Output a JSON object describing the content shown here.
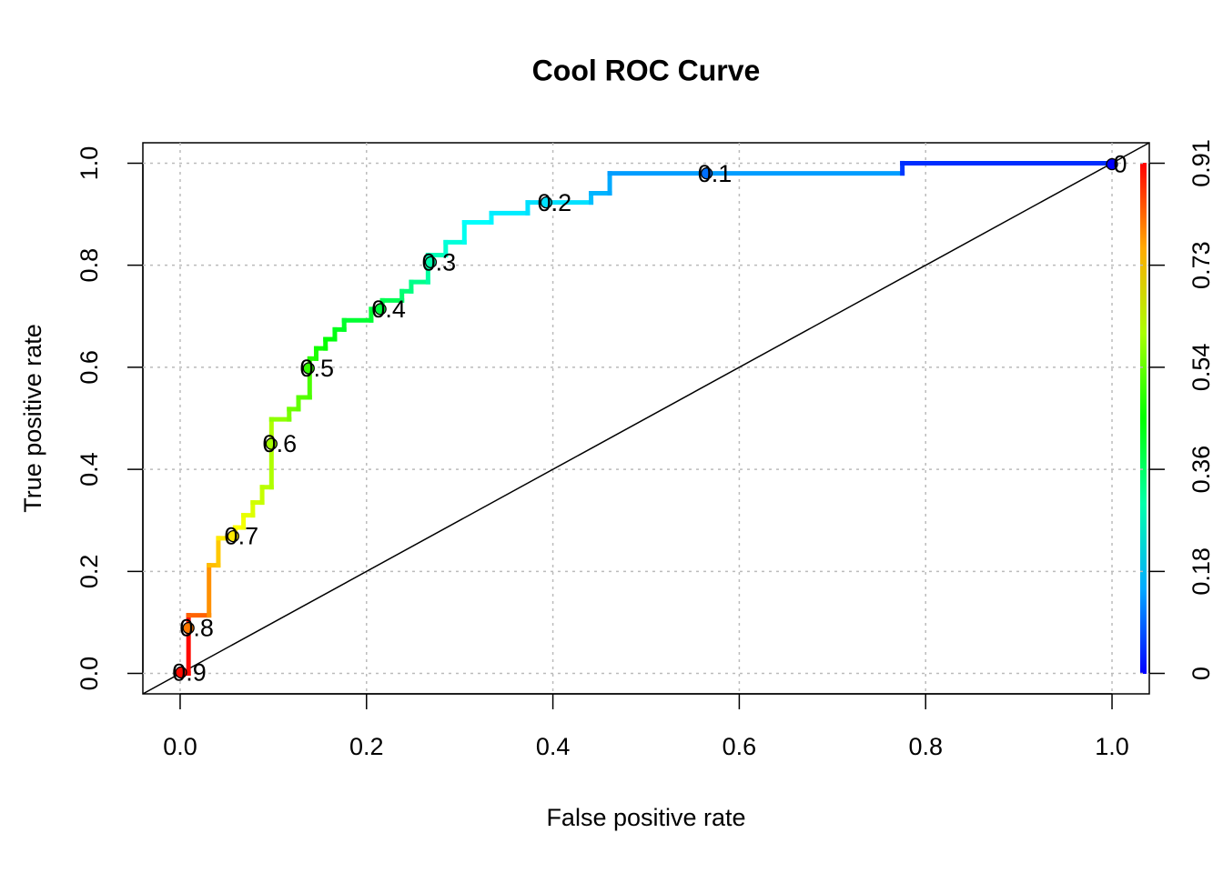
{
  "chart_data": {
    "type": "roc",
    "title": "Cool ROC Curve",
    "x_label": "False positive rate",
    "y_label": "True positive rate",
    "xlim": [
      -0.04,
      1.04
    ],
    "ylim": [
      -0.04,
      1.04
    ],
    "xticks": [
      {
        "value": 0,
        "label": "0.0"
      },
      0.2,
      0.4,
      0.6,
      0.8,
      {
        "value": 1,
        "label": "1.0"
      }
    ],
    "yticks": [
      {
        "value": 0,
        "label": "0.0"
      },
      0.2,
      0.4,
      0.6,
      0.8,
      {
        "value": 1,
        "label": "1.0"
      }
    ],
    "y2lim": [
      -0.03632,
      0.94432
    ],
    "y2ticks": [
      0,
      {
        "value": 0.1816,
        "label": "0.18"
      },
      {
        "value": 0.3632,
        "label": "0.36"
      },
      {
        "value": 0.5448,
        "label": "0.54"
      },
      {
        "value": 0.7264,
        "label": "0.73"
      },
      {
        "value": 0.908,
        "label": "0.91"
      }
    ],
    "grid": true,
    "curve": {
      "x": [
        0,
        0.009,
        0.009,
        0.031,
        0.031,
        0.041,
        0.041,
        0.059,
        0.059,
        0.068,
        0.068,
        0.078,
        0.078,
        0.088,
        0.088,
        0.098,
        0.098,
        0.117,
        0.117,
        0.127,
        0.127,
        0.139,
        0.139,
        0.146,
        0.146,
        0.156,
        0.156,
        0.166,
        0.166,
        0.176,
        0.176,
        0.205,
        0.205,
        0.217,
        0.217,
        0.238,
        0.238,
        0.248,
        0.248,
        0.266,
        0.266,
        0.285,
        0.285,
        0.305,
        0.305,
        0.334,
        0.334,
        0.373,
        0.373,
        0.441,
        0.441,
        0.461,
        0.461,
        0.775,
        0.775,
        1
      ],
      "y": [
        0,
        0,
        0.114,
        0.114,
        0.212,
        0.212,
        0.265,
        0.265,
        0.286,
        0.286,
        0.31,
        0.31,
        0.335,
        0.335,
        0.365,
        0.365,
        0.498,
        0.498,
        0.518,
        0.518,
        0.541,
        0.541,
        0.617,
        0.617,
        0.637,
        0.637,
        0.655,
        0.655,
        0.674,
        0.674,
        0.692,
        0.692,
        0.714,
        0.714,
        0.731,
        0.731,
        0.749,
        0.749,
        0.767,
        0.767,
        0.82,
        0.82,
        0.845,
        0.845,
        0.884,
        0.884,
        0.902,
        0.902,
        0.923,
        0.923,
        0.941,
        0.941,
        0.98,
        0.98,
        1,
        1
      ],
      "cutoff": [
        0.91,
        0.9,
        0.82,
        0.78,
        0.74,
        0.73,
        0.7,
        0.7,
        0.68,
        0.67,
        0.66,
        0.65,
        0.64,
        0.63,
        0.62,
        0.61,
        0.58,
        0.56,
        0.55,
        0.54,
        0.53,
        0.52,
        0.49,
        0.48,
        0.47,
        0.46,
        0.45,
        0.44,
        0.43,
        0.42,
        0.41,
        0.41,
        0.4,
        0.39,
        0.38,
        0.36,
        0.35,
        0.34,
        0.33,
        0.31,
        0.29,
        0.27,
        0.26,
        0.24,
        0.23,
        0.22,
        0.21,
        0.2,
        0.2,
        0.17,
        0.16,
        0.15,
        0.14,
        0.05,
        0.04,
        0
      ]
    },
    "cutoff_labels": {
      "values": [
        0.9,
        0.8,
        0.7,
        0.6,
        0.5,
        0.4,
        0.3,
        0.2,
        0.1,
        0
      ],
      "x": [
        0.001,
        0.009,
        0.057,
        0.098,
        0.138,
        0.215,
        0.269,
        0.393,
        0.565,
        1
      ],
      "y": [
        0.002,
        0.089,
        0.269,
        0.45,
        0.598,
        0.714,
        0.806,
        0.923,
        0.98,
        0.998
      ]
    }
  }
}
